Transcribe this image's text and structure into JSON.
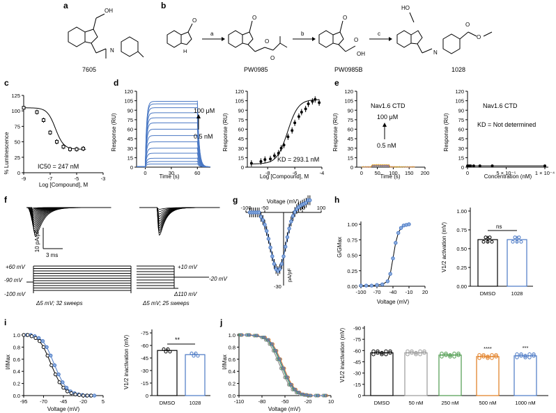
{
  "panels": {
    "a": {
      "label": "a",
      "compound": "7605"
    },
    "b": {
      "label": "b",
      "compounds": [
        "PW0985",
        "PW0985B",
        "1028"
      ],
      "arrows": [
        "a",
        "b",
        "c"
      ]
    },
    "c": {
      "label": "c",
      "ylabel": "% Luminescence",
      "xlabel": "Log [Compound], M",
      "annotation": "IC50 = 247 nM",
      "xticks": [
        "-9",
        "-7",
        "-5",
        "-3"
      ],
      "yticks": [
        "0",
        "25",
        "50",
        "75",
        "100",
        "125"
      ]
    },
    "d": {
      "label": "d",
      "ylabel": "Response (RU)",
      "xlabel_left": "Time (s)",
      "xlabel_right": "Log [Compound], M",
      "hi_label": "100 μM",
      "lo_label": "0.5 nM",
      "kd": "KD = 293.1 nM",
      "left_xticks": [
        "0",
        "30",
        "60"
      ],
      "right_xticks": [
        "-8",
        "-6",
        "-4"
      ],
      "yticks": [
        "0",
        "15",
        "30",
        "45",
        "60",
        "75",
        "90",
        "105",
        "120"
      ]
    },
    "e": {
      "label": "e",
      "title": "Nav1.6 CTD",
      "hi_label": "100 μM",
      "lo_label": "0.5 nM",
      "kd": "KD = Not determined",
      "ylabel": "Response (RU)",
      "xlabel_left": "Time (s)",
      "xlabel_right": "Concentration (nM)",
      "left_xticks": [
        "0",
        "50",
        "100",
        "150",
        "200"
      ],
      "right_xticks": [
        "0",
        "5 × 10⁻⁵",
        "1 × 10⁻⁴"
      ],
      "yticks": [
        "0",
        "15",
        "30",
        "45",
        "60",
        "75",
        "90",
        "105",
        "120"
      ]
    },
    "f": {
      "label": "f",
      "scale_y": "10 pA/pF",
      "scale_x": "3 ms",
      "protocol1": {
        "v1": "+60 mV",
        "v2": "-90 mV",
        "v3": "-100 mV",
        "desc": "Δ5 mV; 32 sweeps"
      },
      "protocol2": {
        "v1": "+10 mV",
        "v2": "-20 mV",
        "v3": "Δ110 mV",
        "desc": "Δ5 mV; 25 sweeps"
      }
    },
    "g": {
      "label": "g",
      "xlabel": "Voltage (mV)",
      "ylabel": "pA/pF",
      "xticks": [
        "-100",
        "-50",
        "50",
        "100"
      ],
      "ymin": "-30"
    },
    "h": {
      "label": "h",
      "ylabel": "G/GMax",
      "xlabel": "Voltage (mV)",
      "xticks": [
        "-100",
        "-70",
        "-40",
        "-10",
        "20"
      ],
      "yticks": [
        "0.00",
        "0.25",
        "0.50",
        "0.75",
        "1.00"
      ],
      "bar_ylabel": "V1/2 activation (mV)",
      "bar_yticks": [
        "0.00",
        "0.25",
        "0.50",
        "0.75",
        "1.00"
      ],
      "sig": "ns",
      "groups": [
        "DMSO",
        "1028"
      ]
    },
    "i": {
      "label": "i",
      "ylabel": "I/IMax",
      "xlabel": "Voltage (mV)",
      "xticks": [
        "-95",
        "-70",
        "-45",
        "-20",
        "5"
      ],
      "yticks": [
        "0.0",
        "0.2",
        "0.4",
        "0.6",
        "0.8",
        "1.0"
      ],
      "bar_ylabel": "V1/2 inactivation (mV)",
      "bar_yticks": [
        "0",
        "-15",
        "-30",
        "-45",
        "-60",
        "-75"
      ],
      "sig": "**",
      "groups": [
        "DMSO",
        "1028"
      ]
    },
    "j": {
      "label": "j",
      "ylabel": "I/IMax",
      "xlabel": "Voltage (mV)",
      "xticks": [
        "-110",
        "-80",
        "-50",
        "-20",
        "10"
      ],
      "yticks": [
        "0.0",
        "0.2",
        "0.4",
        "0.6",
        "0.8",
        "1.0"
      ],
      "bar_ylabel": "V1/2 inactivation (mV)",
      "bar_yticks": [
        "0",
        "-15",
        "-30",
        "-45",
        "-60",
        "-75",
        "-90"
      ],
      "groups": [
        "DMSO",
        "50 nM",
        "250 nM",
        "500 nM",
        "1000 nM"
      ],
      "sig": [
        "",
        "",
        "",
        "****",
        "***"
      ]
    }
  },
  "colors": {
    "blue": "#4a78c4",
    "blue_light": "#8fb0e0",
    "gray": "#9a9a9a",
    "green": "#4c9a4c",
    "orange": "#e07a1c",
    "pink": "#e0408a"
  },
  "chart_data": [
    {
      "panel": "c",
      "type": "scatter",
      "x": [
        -9,
        -8,
        -7.5,
        -7,
        -6.5,
        -6,
        -5.5,
        -5,
        -4.5
      ],
      "y": [
        105,
        98,
        85,
        65,
        50,
        42,
        38,
        38,
        39
      ],
      "ylim": [
        0,
        125
      ],
      "xlim": [
        -9,
        -3
      ]
    },
    {
      "panel": "d-right",
      "type": "scatter",
      "x": [
        -9.2,
        -8.5,
        -8.2,
        -7.8,
        -7.5,
        -7.2,
        -7,
        -6.8,
        -6.5,
        -6.2,
        -6,
        -5.7,
        -5.5,
        -5.2,
        -5,
        -4.7,
        -4.5,
        -4.2
      ],
      "y": [
        6,
        9,
        12,
        13,
        18,
        22,
        30,
        35,
        48,
        58,
        70,
        80,
        87,
        92,
        100,
        104,
        107,
        102
      ],
      "ylim": [
        0,
        120
      ],
      "xlim": [
        -9.5,
        -4
      ]
    },
    {
      "panel": "h",
      "type": "line",
      "x": [
        -100,
        -90,
        -80,
        -70,
        -60,
        -50,
        -45,
        -40,
        -35,
        -30,
        -25,
        -20,
        -15,
        -10
      ],
      "y": [
        0.01,
        0.01,
        0.01,
        0.02,
        0.03,
        0.08,
        0.2,
        0.45,
        0.7,
        0.86,
        0.94,
        0.98,
        0.99,
        1.0
      ]
    },
    {
      "panel": "h-bar",
      "type": "bar",
      "categories": [
        "DMSO",
        "1028"
      ],
      "values": [
        0.62,
        0.62
      ],
      "ylim": [
        0,
        1
      ]
    },
    {
      "panel": "i",
      "type": "line",
      "x": [
        -95,
        -90,
        -85,
        -80,
        -75,
        -70,
        -65,
        -60,
        -55,
        -50,
        -45,
        -40,
        -35,
        -30,
        -25,
        -20,
        -15,
        -10
      ],
      "y": [
        1.0,
        1.0,
        0.98,
        0.95,
        0.9,
        0.8,
        0.66,
        0.5,
        0.35,
        0.22,
        0.13,
        0.07,
        0.04,
        0.02,
        0.01,
        0.0,
        0.0,
        0.0
      ]
    },
    {
      "panel": "i-bar",
      "type": "bar",
      "categories": [
        "DMSO",
        "1028"
      ],
      "values": [
        -54,
        -49
      ],
      "ylim": [
        -75,
        0
      ]
    },
    {
      "panel": "j",
      "type": "line",
      "x": [
        -110,
        -100,
        -90,
        -80,
        -75,
        -70,
        -65,
        -60,
        -55,
        -50,
        -45,
        -40,
        -35,
        -30,
        -25,
        -20,
        -10,
        0
      ],
      "y": [
        1.0,
        1.0,
        0.99,
        0.96,
        0.92,
        0.85,
        0.74,
        0.6,
        0.45,
        0.3,
        0.18,
        0.1,
        0.05,
        0.02,
        0.01,
        0.0,
        0.0,
        0.0
      ]
    },
    {
      "panel": "j-bar",
      "type": "bar",
      "categories": [
        "DMSO",
        "50 nM",
        "250 nM",
        "500 nM",
        "1000 nM"
      ],
      "values": [
        -57,
        -57,
        -54,
        -52,
        -53
      ],
      "ylim": [
        -90,
        0
      ]
    }
  ]
}
